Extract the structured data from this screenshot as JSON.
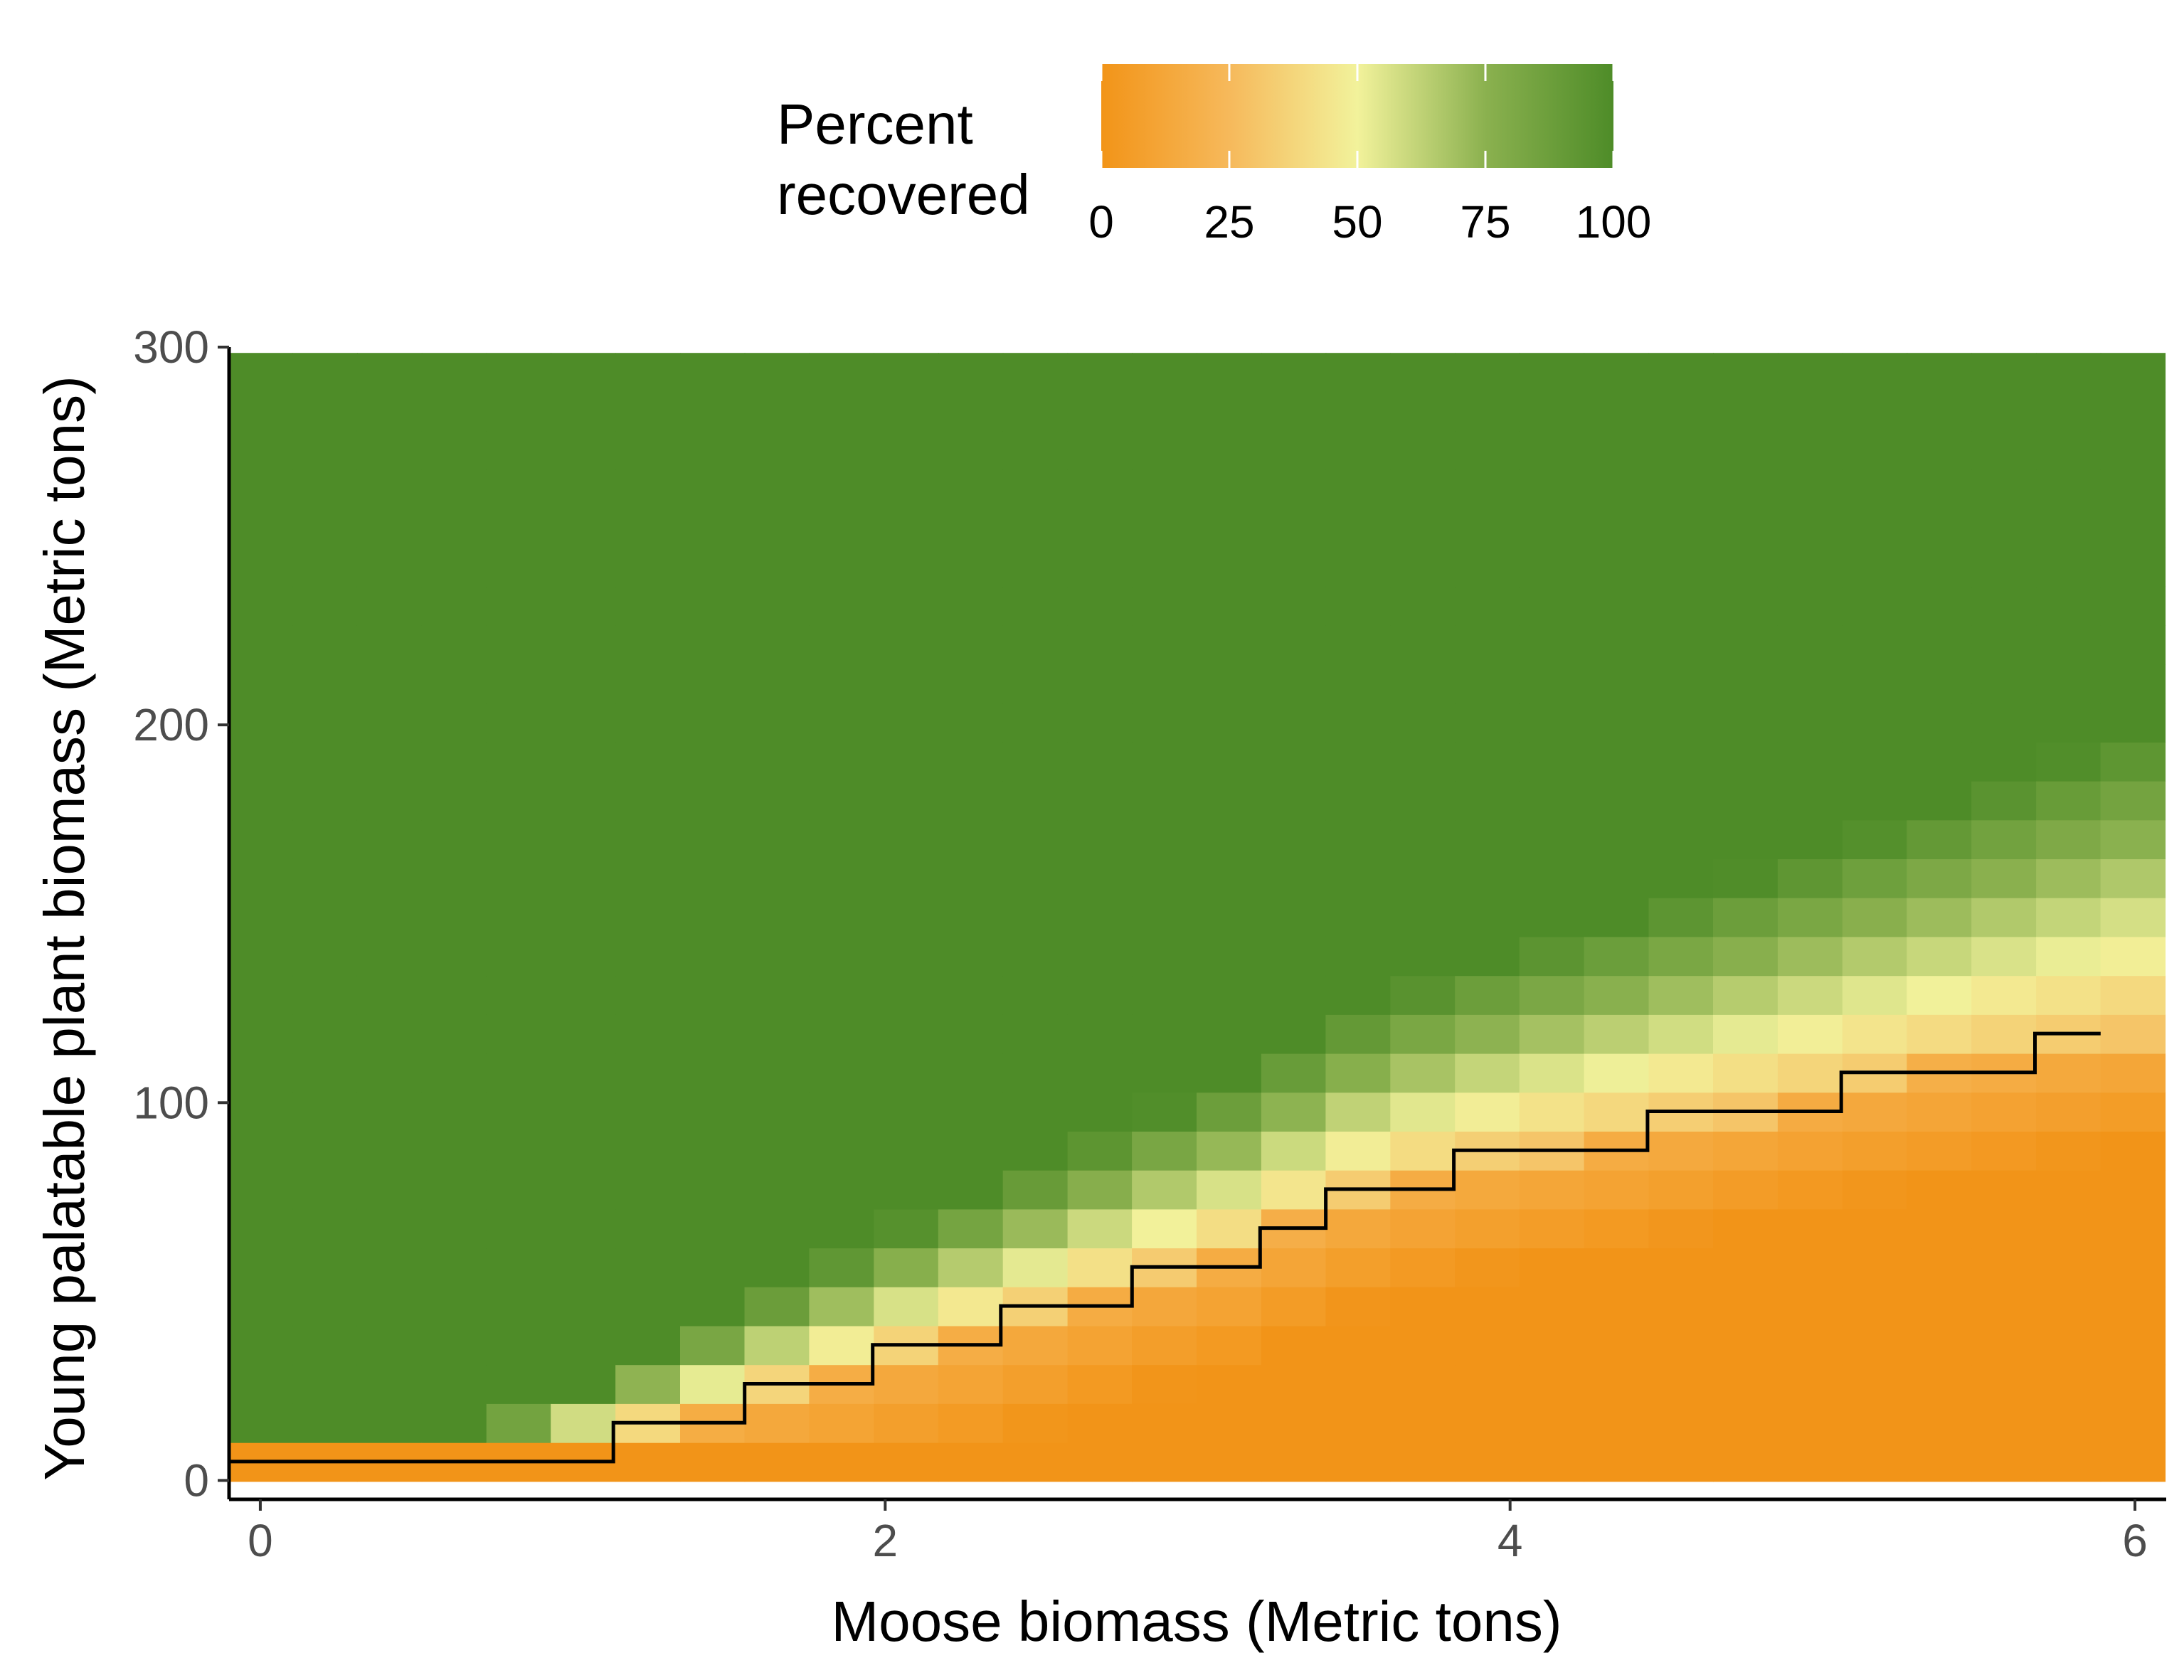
{
  "chart_data": {
    "type": "heatmap",
    "xlabel": "Moose biomass (Metric tons)",
    "ylabel": "Young palatable plant biomass (Metric tons)",
    "xlim": [
      -0.1,
      6.1
    ],
    "ylim": [
      -5,
      300
    ],
    "x_ticks": [
      0,
      2,
      4,
      6
    ],
    "y_ticks": [
      0,
      100,
      200,
      300
    ],
    "x_tick_labels": [
      "0",
      "2",
      "4",
      "6"
    ],
    "y_tick_labels": [
      "0",
      "100",
      "200",
      "300"
    ],
    "grid": false,
    "cell_width": 0.2069,
    "cell_height": 10.3,
    "x_centers": [
      0.207,
      0.413,
      0.62,
      0.827,
      1.033,
      1.24,
      1.447,
      1.653,
      1.86,
      2.067,
      2.273,
      2.48,
      2.687,
      2.893,
      3.1,
      3.307,
      3.513,
      3.72,
      3.927,
      4.133,
      4.34,
      4.547,
      4.753,
      4.96,
      5.167,
      5.373,
      5.58,
      5.787,
      5.993
    ],
    "y_first_center": 4.9,
    "y_step": 10.3,
    "y_rows": 29,
    "cells_note_colorscale": "value 0 = #f29418, 25 = #f6b95b, 50 = #f2f29b, 75 = #8bb14f, 100 = #4e8c28",
    "legend": {
      "title": [
        "Percent",
        "recovered"
      ],
      "position": "top",
      "ticks": [
        0,
        25,
        50,
        75,
        100
      ],
      "tick_labels": [
        "0",
        "25",
        "50",
        "75",
        "100"
      ],
      "colors": [
        "#f29418",
        "#f6b95b",
        "#f2f29b",
        "#8bb14f",
        "#4e8c28"
      ]
    },
    "threshold_line": {
      "name": "",
      "x": [
        -0.1,
        1.13,
        1.13,
        1.55,
        1.55,
        1.96,
        1.96,
        2.37,
        2.37,
        2.79,
        2.79,
        3.2,
        3.2,
        3.41,
        3.41,
        3.82,
        3.82,
        4.44,
        4.44,
        5.06,
        5.06,
        5.68,
        5.68,
        5.89
      ],
      "y": [
        5,
        5,
        15.3,
        15.3,
        25.6,
        25.6,
        35.9,
        35.9,
        46.2,
        46.2,
        56.5,
        56.5,
        66.8,
        66.8,
        77.1,
        77.1,
        87.4,
        87.4,
        97.7,
        97.7,
        108,
        108,
        118.3,
        118.3
      ]
    },
    "boundary_model": {
      "description": "recovery rises from 0 to 100 percent in a band above a rising boundary",
      "y_boundary_at_x": [
        [
          0.8,
          5
        ],
        [
          1.13,
          10
        ],
        [
          1.55,
          20
        ],
        [
          1.96,
          30
        ],
        [
          2.37,
          40
        ],
        [
          2.79,
          52
        ],
        [
          3.2,
          62
        ],
        [
          3.41,
          72
        ],
        [
          3.82,
          82
        ],
        [
          4.44,
          92
        ],
        [
          5.06,
          103
        ],
        [
          5.68,
          113
        ],
        [
          5.99,
          118
        ]
      ],
      "transition_band_height_at_x": [
        [
          0.8,
          12
        ],
        [
          2.0,
          35
        ],
        [
          3.0,
          45
        ],
        [
          4.0,
          55
        ],
        [
          5.0,
          65
        ],
        [
          6.0,
          80
        ]
      ]
    }
  }
}
